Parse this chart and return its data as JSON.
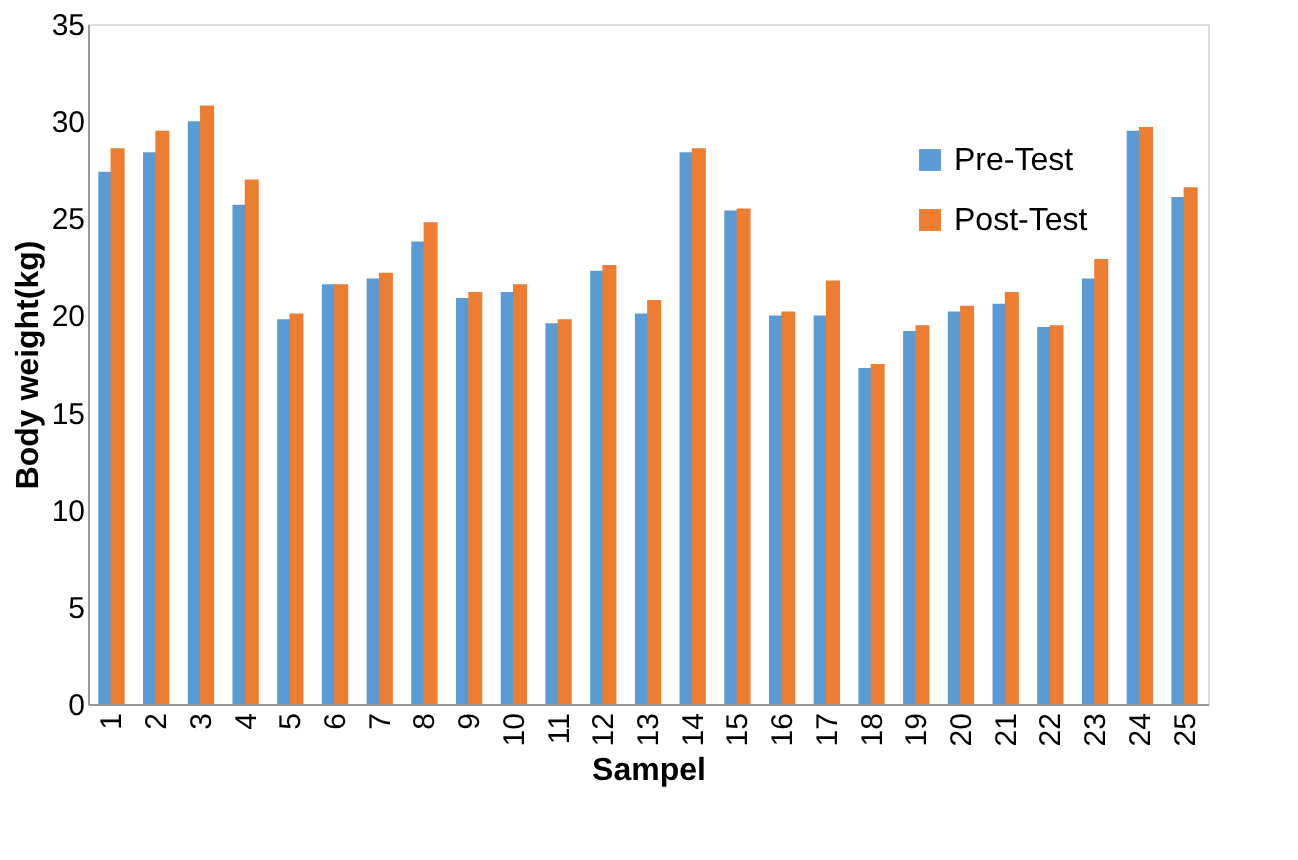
{
  "chart_data": {
    "type": "bar",
    "xlabel": "Sampel",
    "ylabel": "Body weight(kg)",
    "categories": [
      "1",
      "2",
      "3",
      "4",
      "5",
      "6",
      "7",
      "8",
      "9",
      "10",
      "11",
      "12",
      "13",
      "14",
      "15",
      "16",
      "17",
      "18",
      "19",
      "20",
      "21",
      "22",
      "23",
      "24",
      "25"
    ],
    "series": [
      {
        "name": "Pre-Test",
        "color": "#5b9bd5",
        "values": [
          27.4,
          28.4,
          30,
          25.7,
          19.8,
          21.6,
          21.9,
          23.8,
          20.9,
          21.2,
          19.6,
          22.3,
          20.1,
          28.4,
          25.4,
          20,
          20,
          17.3,
          19.2,
          20.2,
          20.6,
          19.4,
          21.9,
          29.5,
          26.1
        ]
      },
      {
        "name": "Post-Test",
        "color": "#ed7d31",
        "values": [
          28.6,
          29.5,
          30.8,
          27,
          20.1,
          21.6,
          22.2,
          24.8,
          21.2,
          21.6,
          19.8,
          22.6,
          20.8,
          28.6,
          25.5,
          20.2,
          21.8,
          17.5,
          19.5,
          20.5,
          21.2,
          19.5,
          22.9,
          29.7,
          26.6
        ]
      }
    ],
    "ylim": [
      0,
      35
    ],
    "yticks": [
      0,
      5,
      10,
      15,
      20,
      25,
      30,
      35
    ],
    "grid": false,
    "legend": "top right"
  }
}
